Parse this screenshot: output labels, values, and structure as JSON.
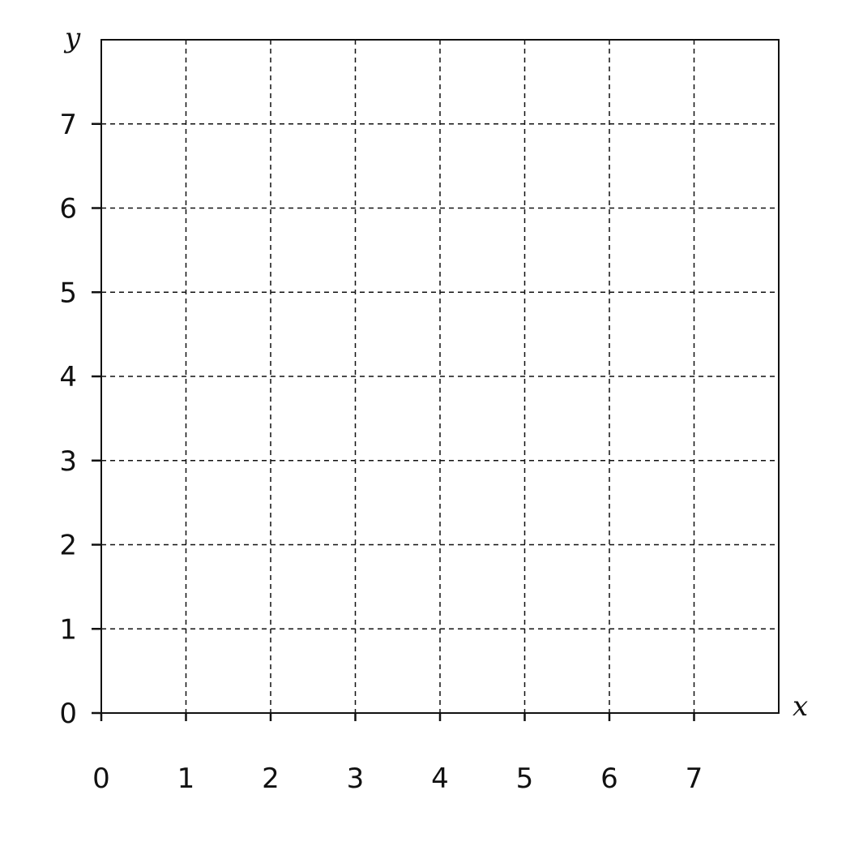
{
  "chart_data": {
    "type": "scatter",
    "title": "",
    "xlabel": "x",
    "ylabel": "y",
    "xlim": [
      0,
      8
    ],
    "ylim": [
      0,
      8
    ],
    "x_ticks": [
      0,
      1,
      2,
      3,
      4,
      5,
      6,
      7
    ],
    "y_ticks": [
      0,
      1,
      2,
      3,
      4,
      5,
      6,
      7
    ],
    "x_tick_labels": [
      "0",
      "1",
      "2",
      "3",
      "4",
      "5",
      "6",
      "7"
    ],
    "y_tick_labels": [
      "0",
      "1",
      "2",
      "3",
      "4",
      "5",
      "6",
      "7"
    ],
    "grid": true,
    "grid_style": "dashed",
    "series": [],
    "colors": {
      "axis": "#111111",
      "grid": "#111111",
      "background": "#ffffff"
    }
  }
}
